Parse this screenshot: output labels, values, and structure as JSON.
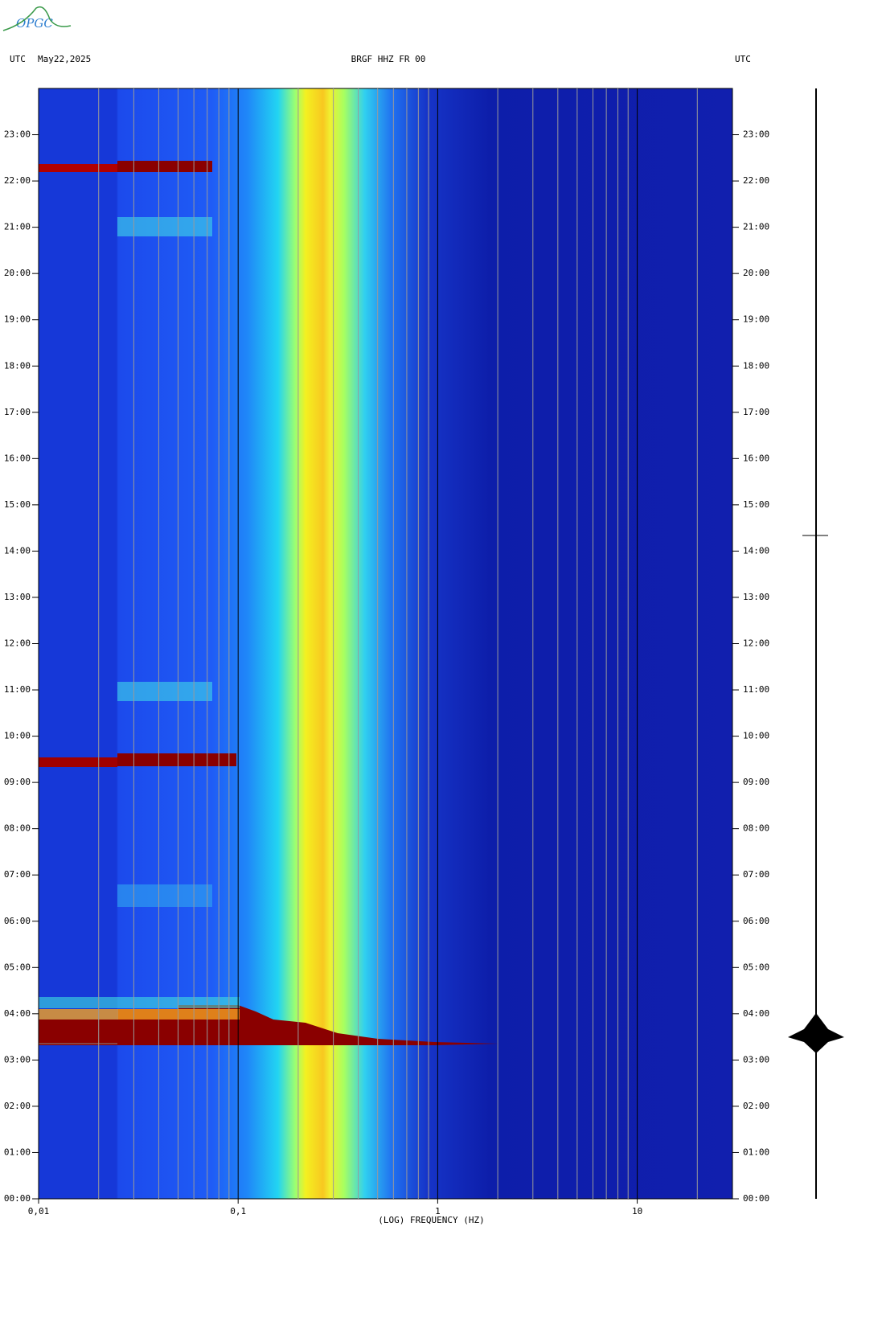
{
  "logo": "OPGC",
  "chart_data": {
    "type": "spectrogram",
    "header_left_zone": "UTC",
    "date": "May22,2025",
    "title": "BRGF HHZ FR 00",
    "header_right_zone": "UTC",
    "xlabel": "(LOG) FREQUENCY (HZ)",
    "xscale": "log",
    "xlim": [
      0.01,
      30
    ],
    "xticks": [
      {
        "value": 0.01,
        "label": "0,01"
      },
      {
        "value": 0.1,
        "label": "0,1"
      },
      1,
      10
    ],
    "xgrid": [
      0.02,
      0.03,
      0.04,
      0.05,
      0.06,
      0.07,
      0.08,
      0.09,
      0.2,
      0.3,
      0.4,
      0.5,
      0.6,
      0.7,
      0.8,
      0.9,
      2,
      3,
      4,
      5,
      6,
      7,
      8,
      9,
      20
    ],
    "ylim": [
      0,
      24
    ],
    "yticks": [
      {
        "value": 0,
        "label": "00:00"
      },
      {
        "value": 1,
        "label": "01:00"
      },
      {
        "value": 2,
        "label": "02:00"
      },
      {
        "value": 3,
        "label": "03:00"
      },
      {
        "value": 4,
        "label": "04:00"
      },
      {
        "value": 5,
        "label": "05:00"
      },
      {
        "value": 6,
        "label": "06:00"
      },
      {
        "value": 7,
        "label": "07:00"
      },
      {
        "value": 8,
        "label": "08:00"
      },
      {
        "value": 9,
        "label": "09:00"
      },
      {
        "value": 10,
        "label": "10:00"
      },
      {
        "value": 11,
        "label": "11:00"
      },
      {
        "value": 12,
        "label": "12:00"
      },
      {
        "value": 13,
        "label": "13:00"
      },
      {
        "value": 14,
        "label": "14:00"
      },
      {
        "value": 15,
        "label": "15:00"
      },
      {
        "value": 16,
        "label": "16:00"
      },
      {
        "value": 17,
        "label": "17:00"
      },
      {
        "value": 18,
        "label": "18:00"
      },
      {
        "value": 19,
        "label": "19:00"
      },
      {
        "value": 20,
        "label": "20:00"
      },
      {
        "value": 21,
        "label": "21:00"
      },
      {
        "value": 22,
        "label": "22:00"
      },
      {
        "value": 23,
        "label": "23:00"
      }
    ]
  }
}
